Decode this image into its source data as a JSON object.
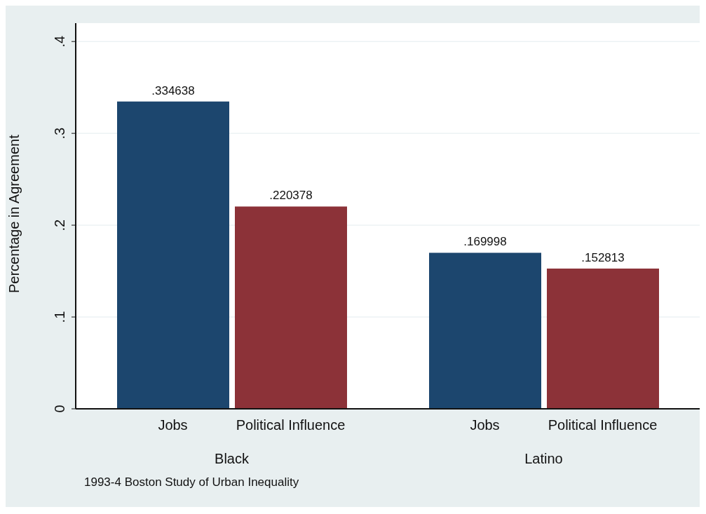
{
  "chart_data": {
    "type": "bar",
    "ylabel": "Percentage in Agreement",
    "categories": [
      "Black",
      "Latino"
    ],
    "series": [
      {
        "name": "Jobs",
        "color": "#1c466e",
        "values": [
          0.334638,
          0.169998
        ],
        "value_labels": [
          ".334638",
          ".169998"
        ]
      },
      {
        "name": "Political Influence",
        "color": "#8c3238",
        "values": [
          0.220378,
          0.152813
        ],
        "value_labels": [
          ".220378",
          ".152813"
        ]
      }
    ],
    "ylim": [
      0,
      0.42
    ],
    "yticks": [
      {
        "value": 0,
        "label": "0"
      },
      {
        "value": 0.1,
        "label": ".1"
      },
      {
        "value": 0.2,
        "label": ".2"
      },
      {
        "value": 0.3,
        "label": ".3"
      },
      {
        "value": 0.4,
        "label": ".4"
      }
    ],
    "grid": "y",
    "legend": false,
    "annotations": [
      "1993-4 Boston Study of Urban Inequality"
    ]
  }
}
